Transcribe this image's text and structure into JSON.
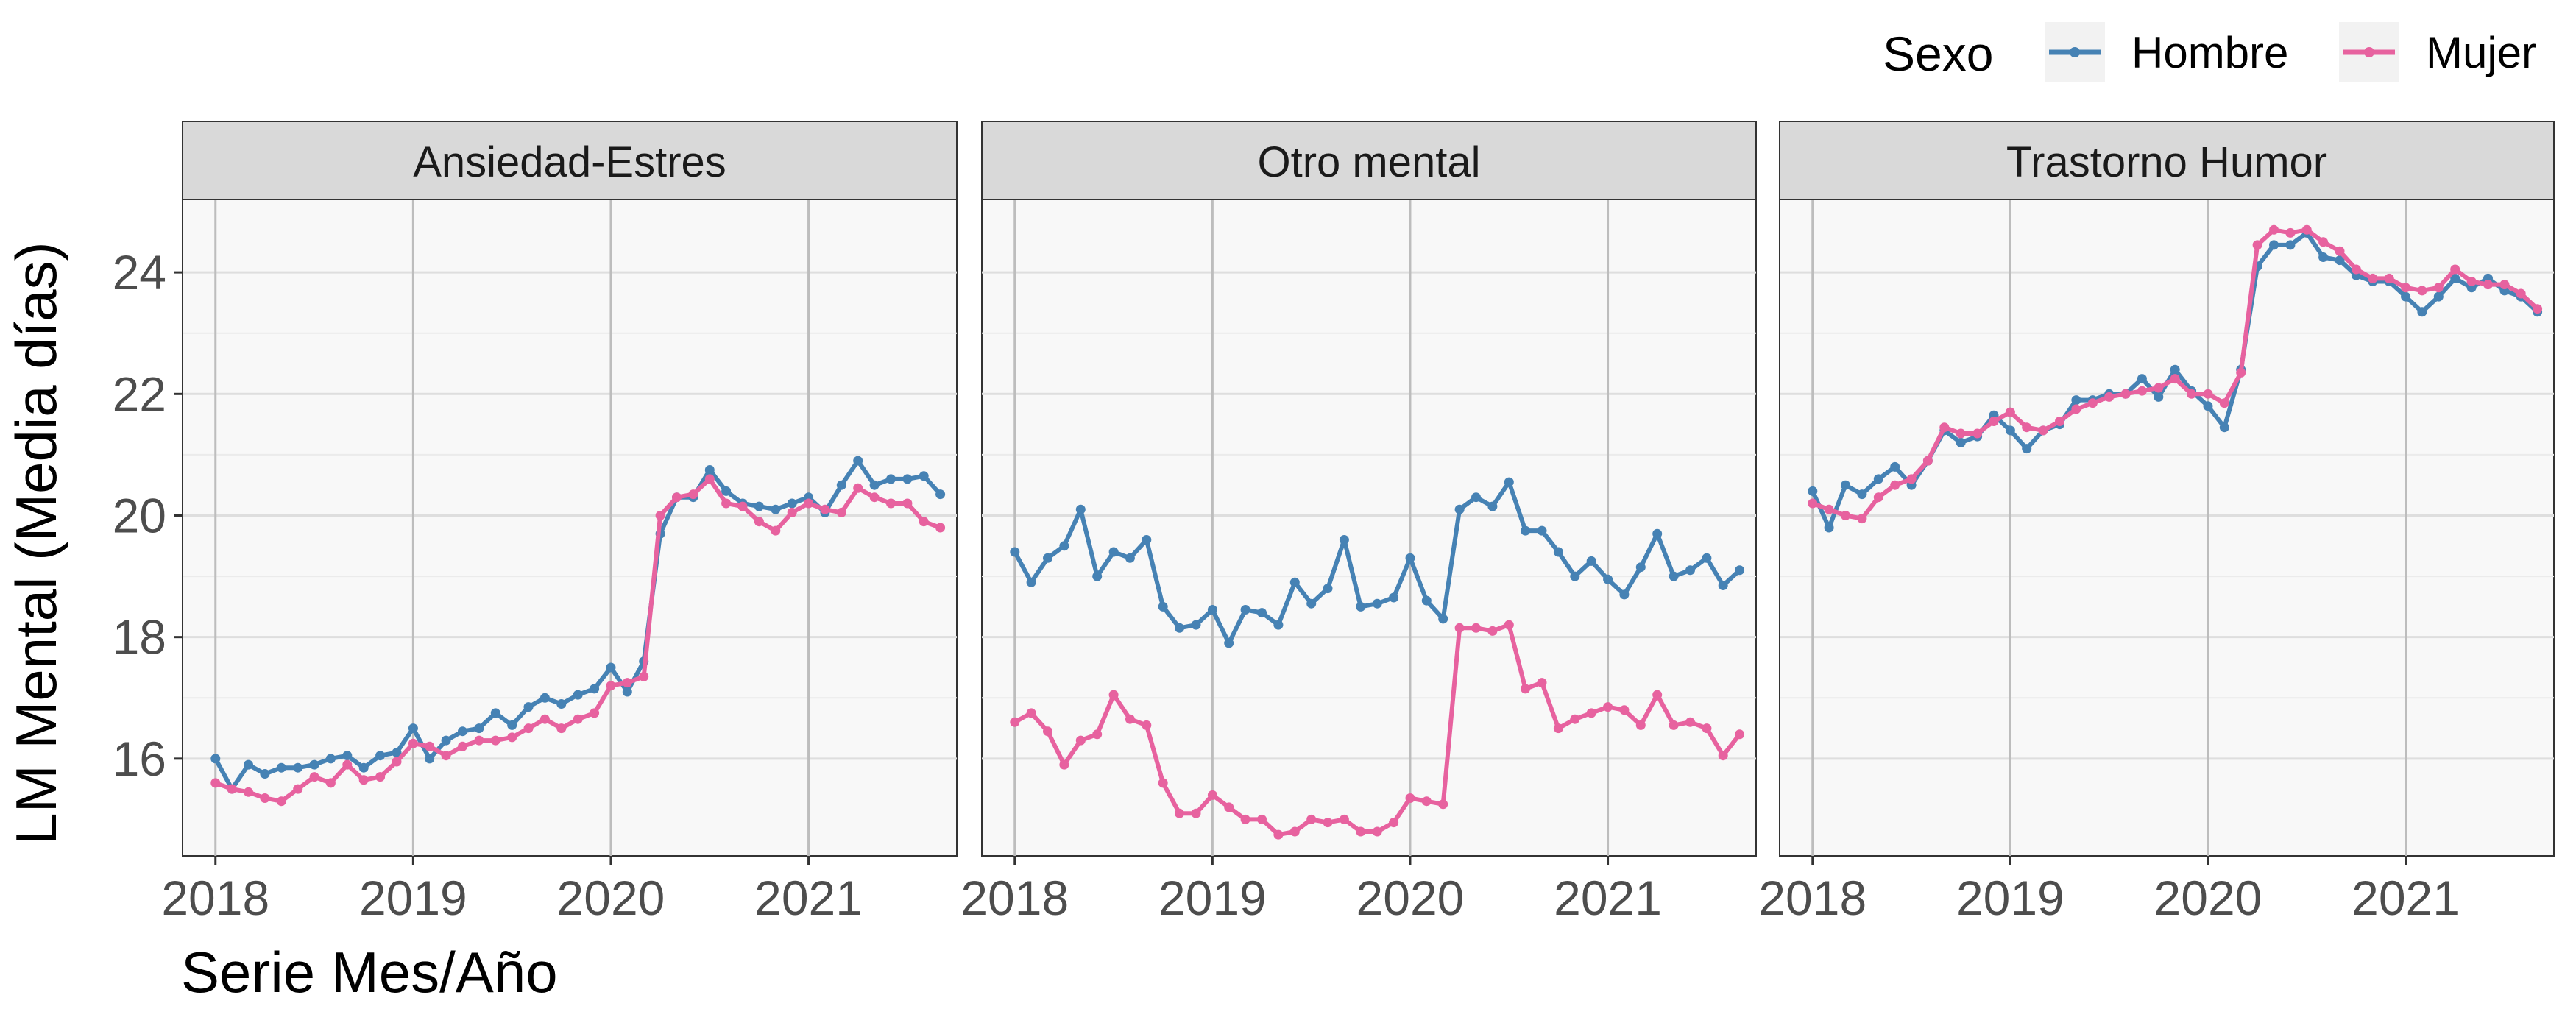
{
  "chart_data": {
    "type": "line",
    "facets": [
      "Ansiedad-Estres",
      "Otro mental",
      "Trastorno Humor"
    ],
    "xlabel": "Serie Mes/Año",
    "ylabel": "LM Mental (Media días)",
    "x_ticks": [
      "2018",
      "2019",
      "2020",
      "2021"
    ],
    "y_ticks": [
      "16",
      "18",
      "20",
      "22",
      "24"
    ],
    "xlim": [
      "2017-11",
      "2021-10"
    ],
    "ylim": [
      14.4,
      25.2
    ],
    "grid": true,
    "legend": {
      "title": "Sexo",
      "position": "top-right",
      "entries": [
        "Hombre",
        "Mujer"
      ]
    },
    "x_months": [
      "2018-01",
      "2018-02",
      "2018-03",
      "2018-04",
      "2018-05",
      "2018-06",
      "2018-07",
      "2018-08",
      "2018-09",
      "2018-10",
      "2018-11",
      "2018-12",
      "2019-01",
      "2019-02",
      "2019-03",
      "2019-04",
      "2019-05",
      "2019-06",
      "2019-07",
      "2019-08",
      "2019-09",
      "2019-10",
      "2019-11",
      "2019-12",
      "2020-01",
      "2020-02",
      "2020-03",
      "2020-04",
      "2020-05",
      "2020-06",
      "2020-07",
      "2020-08",
      "2020-09",
      "2020-10",
      "2020-11",
      "2020-12",
      "2021-01",
      "2021-02",
      "2021-03",
      "2021-04",
      "2021-05",
      "2021-06",
      "2021-07",
      "2021-08",
      "2021-09"
    ],
    "panels": [
      {
        "facet": "Ansiedad-Estres",
        "series": [
          {
            "name": "Hombre",
            "color": "#4682B4",
            "values": [
              16.0,
              15.5,
              15.9,
              15.75,
              15.85,
              15.85,
              15.9,
              16.0,
              16.05,
              15.85,
              16.05,
              16.1,
              16.5,
              16.0,
              16.3,
              16.45,
              16.5,
              16.75,
              16.55,
              16.85,
              17.0,
              16.9,
              17.05,
              17.15,
              17.5,
              17.1,
              17.6,
              19.7,
              20.3,
              20.3,
              20.75,
              20.4,
              20.2,
              20.15,
              20.1,
              20.2,
              20.3,
              20.05,
              20.5,
              20.9,
              20.5,
              20.6,
              20.6,
              20.65,
              20.35
            ]
          },
          {
            "name": "Mujer",
            "color": "#E7629F",
            "values": [
              15.6,
              15.5,
              15.45,
              15.35,
              15.3,
              15.5,
              15.7,
              15.6,
              15.9,
              15.65,
              15.7,
              15.95,
              16.25,
              16.2,
              16.05,
              16.2,
              16.3,
              16.3,
              16.35,
              16.5,
              16.65,
              16.5,
              16.65,
              16.75,
              17.2,
              17.25,
              17.35,
              20.0,
              20.3,
              20.35,
              20.6,
              20.2,
              20.15,
              19.9,
              19.75,
              20.05,
              20.2,
              20.1,
              20.05,
              20.45,
              20.3,
              20.2,
              20.2,
              19.9,
              19.8
            ]
          }
        ]
      },
      {
        "facet": "Otro mental",
        "series": [
          {
            "name": "Hombre",
            "color": "#4682B4",
            "values": [
              19.4,
              18.9,
              19.3,
              19.5,
              20.1,
              19.0,
              19.4,
              19.3,
              19.6,
              18.5,
              18.15,
              18.2,
              18.45,
              17.9,
              18.45,
              18.4,
              18.2,
              18.9,
              18.55,
              18.8,
              19.6,
              18.5,
              18.55,
              18.65,
              19.3,
              18.6,
              18.3,
              20.1,
              20.3,
              20.15,
              20.55,
              19.75,
              19.75,
              19.4,
              19.0,
              19.25,
              18.95,
              18.7,
              19.15,
              19.7,
              19.0,
              19.1,
              19.3,
              18.85,
              19.1
            ]
          },
          {
            "name": "Mujer",
            "color": "#E7629F",
            "values": [
              16.6,
              16.75,
              16.45,
              15.9,
              16.3,
              16.4,
              17.05,
              16.65,
              16.55,
              15.6,
              15.1,
              15.1,
              15.4,
              15.2,
              15.0,
              15.0,
              14.75,
              14.8,
              15.0,
              14.95,
              15.0,
              14.8,
              14.8,
              14.95,
              15.35,
              15.3,
              15.25,
              18.15,
              18.15,
              18.1,
              18.2,
              17.15,
              17.25,
              16.5,
              16.65,
              16.75,
              16.85,
              16.8,
              16.55,
              17.05,
              16.55,
              16.6,
              16.5,
              16.05,
              16.4
            ]
          }
        ]
      },
      {
        "facet": "Trastorno Humor",
        "series": [
          {
            "name": "Hombre",
            "color": "#4682B4",
            "values": [
              20.4,
              19.8,
              20.5,
              20.35,
              20.6,
              20.8,
              20.5,
              20.9,
              21.4,
              21.2,
              21.3,
              21.65,
              21.4,
              21.1,
              21.4,
              21.5,
              21.9,
              21.9,
              22.0,
              22.0,
              22.25,
              21.95,
              22.4,
              22.05,
              21.8,
              21.45,
              22.4,
              24.1,
              24.45,
              24.45,
              24.65,
              24.25,
              24.2,
              23.95,
              23.85,
              23.85,
              23.6,
              23.35,
              23.6,
              23.9,
              23.75,
              23.9,
              23.7,
              23.6,
              23.35
            ]
          },
          {
            "name": "Mujer",
            "color": "#E7629F",
            "values": [
              20.2,
              20.1,
              20.0,
              19.95,
              20.3,
              20.5,
              20.6,
              20.9,
              21.45,
              21.35,
              21.35,
              21.55,
              21.7,
              21.45,
              21.4,
              21.55,
              21.75,
              21.85,
              21.95,
              22.0,
              22.05,
              22.1,
              22.25,
              22.0,
              22.0,
              21.85,
              22.35,
              24.45,
              24.7,
              24.65,
              24.7,
              24.5,
              24.35,
              24.05,
              23.9,
              23.9,
              23.75,
              23.7,
              23.75,
              24.05,
              23.85,
              23.8,
              23.8,
              23.65,
              23.4
            ]
          }
        ]
      }
    ]
  }
}
